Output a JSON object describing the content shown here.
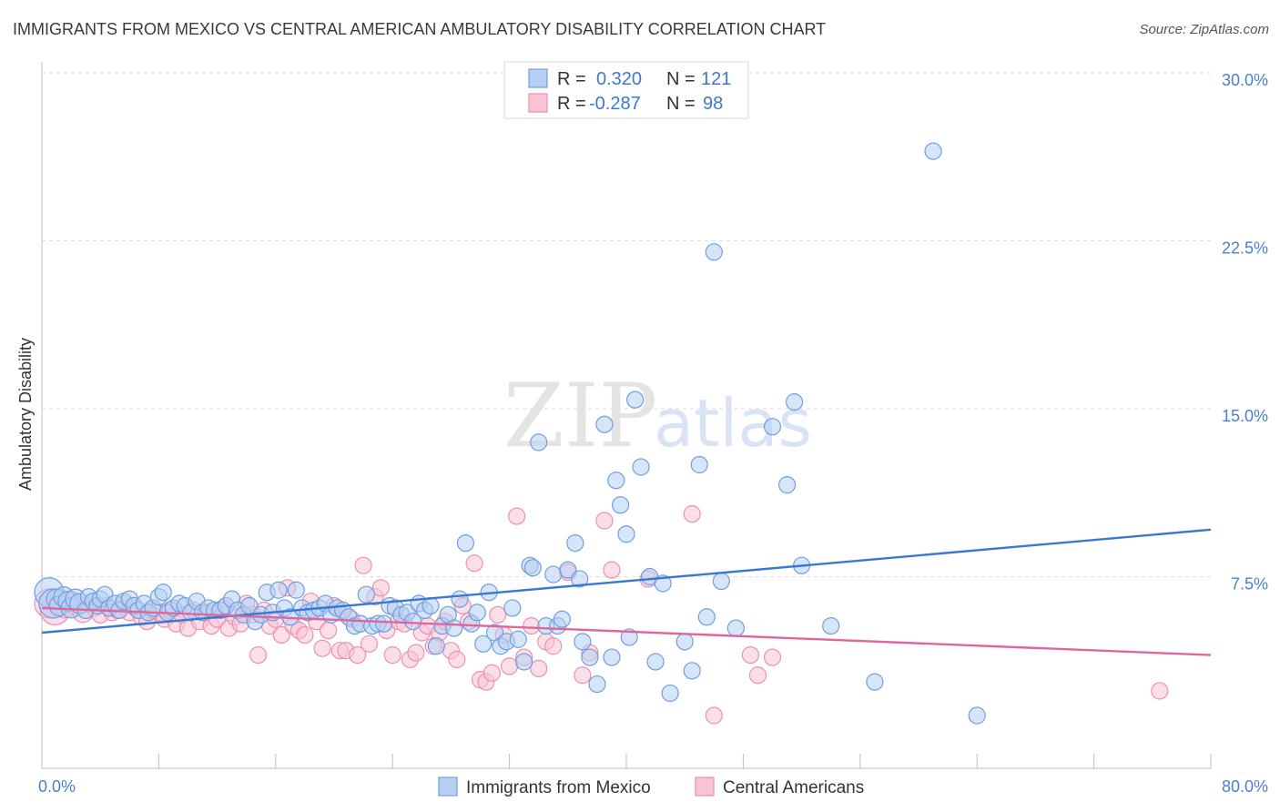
{
  "title": "IMMIGRANTS FROM MEXICO VS CENTRAL AMERICAN AMBULATORY DISABILITY CORRELATION CHART",
  "source": "Source: ZipAtlas.com",
  "watermark": {
    "zip": "ZIP",
    "atlas": "atlas"
  },
  "colors": {
    "blue": "#6f9fe0",
    "blue_fill": "#b7cff2",
    "blue_line": "#3a78d0",
    "pink": "#ee8fb0",
    "pink_fill": "#f7c4d5",
    "pink_line": "#e0669a",
    "grid": "#dddddd",
    "tick_text": "#4a7fd0"
  },
  "legend": {
    "rows": [
      {
        "r_label": "R =",
        "r_value": "0.320",
        "n_label": "N =",
        "n_value": "121"
      },
      {
        "r_label": "R =",
        "r_value": "-0.287",
        "n_label": "N =",
        "n_value": "98"
      }
    ]
  },
  "chart_data": {
    "type": "scatter",
    "title": "IMMIGRANTS FROM MEXICO VS CENTRAL AMERICAN AMBULATORY DISABILITY CORRELATION CHART",
    "xlabel": "",
    "ylabel": "Ambulatory Disability",
    "xlim": [
      0,
      80
    ],
    "ylim": [
      0,
      30
    ],
    "x_tick_labels": [
      "0.0%",
      "80.0%"
    ],
    "y_ticks": [
      7.5,
      15.0,
      22.5,
      30.0
    ],
    "y_tick_labels": [
      "7.5%",
      "15.0%",
      "22.5%",
      "30.0%"
    ],
    "grid": true,
    "legend_position": "bottom",
    "series": [
      {
        "name": "Immigrants from Mexico",
        "trend": {
          "x": [
            0,
            80
          ],
          "y": [
            5.0,
            9.6
          ]
        },
        "points": [
          [
            0.5,
            6.8
          ],
          [
            0.8,
            6.3
          ],
          [
            1.0,
            6.5
          ],
          [
            1.2,
            6.2
          ],
          [
            1.5,
            6.6
          ],
          [
            1.8,
            6.4
          ],
          [
            2.0,
            6.1
          ],
          [
            2.3,
            6.5
          ],
          [
            2.6,
            6.3
          ],
          [
            3.0,
            6.0
          ],
          [
            3.2,
            6.6
          ],
          [
            3.5,
            6.4
          ],
          [
            3.8,
            6.2
          ],
          [
            4.0,
            6.5
          ],
          [
            4.3,
            6.7
          ],
          [
            4.6,
            6.1
          ],
          [
            5.0,
            6.3
          ],
          [
            5.3,
            6.0
          ],
          [
            5.6,
            6.4
          ],
          [
            6.0,
            6.5
          ],
          [
            6.3,
            6.2
          ],
          [
            6.6,
            6.0
          ],
          [
            7.0,
            6.3
          ],
          [
            7.3,
            5.9
          ],
          [
            7.6,
            6.1
          ],
          [
            8.0,
            6.6
          ],
          [
            8.3,
            6.8
          ],
          [
            8.6,
            5.9
          ],
          [
            9.0,
            6.1
          ],
          [
            9.4,
            6.3
          ],
          [
            9.8,
            6.2
          ],
          [
            10.2,
            5.9
          ],
          [
            10.6,
            6.4
          ],
          [
            11.0,
            5.9
          ],
          [
            11.4,
            6.1
          ],
          [
            11.8,
            6.0
          ],
          [
            12.2,
            6.0
          ],
          [
            12.6,
            6.2
          ],
          [
            13.0,
            6.5
          ],
          [
            13.4,
            6.0
          ],
          [
            13.8,
            5.8
          ],
          [
            14.2,
            6.2
          ],
          [
            14.6,
            5.5
          ],
          [
            15.0,
            5.8
          ],
          [
            15.4,
            6.8
          ],
          [
            15.8,
            5.9
          ],
          [
            16.2,
            6.9
          ],
          [
            16.6,
            6.1
          ],
          [
            17.0,
            5.7
          ],
          [
            17.4,
            6.9
          ],
          [
            17.8,
            6.1
          ],
          [
            18.2,
            5.9
          ],
          [
            18.6,
            6.0
          ],
          [
            19.0,
            6.1
          ],
          [
            19.4,
            6.3
          ],
          [
            19.8,
            5.8
          ],
          [
            20.2,
            6.1
          ],
          [
            20.6,
            6.0
          ],
          [
            21.0,
            5.7
          ],
          [
            21.4,
            5.3
          ],
          [
            21.8,
            5.4
          ],
          [
            22.2,
            6.7
          ],
          [
            22.6,
            5.3
          ],
          [
            23.0,
            5.4
          ],
          [
            23.4,
            5.4
          ],
          [
            23.8,
            6.2
          ],
          [
            24.2,
            6.1
          ],
          [
            24.6,
            5.8
          ],
          [
            25.0,
            5.9
          ],
          [
            25.4,
            5.5
          ],
          [
            25.8,
            6.3
          ],
          [
            26.2,
            6.0
          ],
          [
            26.6,
            6.2
          ],
          [
            27.0,
            4.4
          ],
          [
            27.4,
            5.3
          ],
          [
            27.8,
            5.8
          ],
          [
            28.2,
            5.2
          ],
          [
            28.6,
            6.5
          ],
          [
            29.0,
            9.0
          ],
          [
            29.4,
            5.4
          ],
          [
            29.8,
            5.9
          ],
          [
            30.2,
            4.5
          ],
          [
            30.6,
            6.8
          ],
          [
            31.0,
            5.0
          ],
          [
            31.4,
            4.4
          ],
          [
            31.8,
            4.6
          ],
          [
            32.2,
            6.1
          ],
          [
            32.6,
            4.7
          ],
          [
            33.0,
            3.7
          ],
          [
            33.4,
            8.0
          ],
          [
            33.6,
            7.9
          ],
          [
            34.0,
            13.5
          ],
          [
            34.5,
            5.3
          ],
          [
            35.0,
            7.6
          ],
          [
            35.3,
            5.3
          ],
          [
            35.6,
            5.6
          ],
          [
            36.0,
            7.8
          ],
          [
            36.5,
            9.0
          ],
          [
            36.8,
            7.4
          ],
          [
            37.0,
            4.6
          ],
          [
            37.5,
            3.9
          ],
          [
            38.0,
            2.7
          ],
          [
            38.5,
            14.3
          ],
          [
            39.0,
            3.9
          ],
          [
            39.3,
            11.8
          ],
          [
            39.6,
            10.7
          ],
          [
            40.0,
            9.4
          ],
          [
            40.2,
            4.8
          ],
          [
            40.6,
            15.4
          ],
          [
            41.0,
            12.4
          ],
          [
            41.6,
            7.5
          ],
          [
            42.0,
            3.7
          ],
          [
            42.5,
            7.2
          ],
          [
            43.0,
            2.3
          ],
          [
            44.0,
            4.6
          ],
          [
            44.5,
            3.3
          ],
          [
            45.0,
            12.5
          ],
          [
            45.5,
            5.7
          ],
          [
            46.0,
            22.0
          ],
          [
            46.5,
            7.3
          ],
          [
            47.5,
            5.2
          ],
          [
            50.0,
            14.2
          ],
          [
            51.0,
            11.6
          ],
          [
            51.5,
            15.3
          ],
          [
            52.0,
            8.0
          ],
          [
            54.0,
            5.3
          ],
          [
            57.0,
            2.8
          ],
          [
            61.0,
            26.5
          ],
          [
            64.0,
            1.3
          ]
        ]
      },
      {
        "name": "Central Americans",
        "trend": {
          "x": [
            0,
            80
          ],
          "y": [
            6.1,
            4.0
          ]
        },
        "points": [
          [
            0.5,
            6.3
          ],
          [
            0.9,
            6.0
          ],
          [
            1.2,
            6.5
          ],
          [
            1.6,
            6.1
          ],
          [
            2.0,
            6.4
          ],
          [
            2.4,
            6.2
          ],
          [
            2.8,
            5.9
          ],
          [
            3.2,
            6.3
          ],
          [
            3.6,
            6.1
          ],
          [
            4.0,
            5.8
          ],
          [
            4.4,
            6.2
          ],
          [
            4.8,
            5.9
          ],
          [
            5.2,
            6.0
          ],
          [
            5.6,
            6.3
          ],
          [
            6.0,
            5.9
          ],
          [
            6.4,
            6.1
          ],
          [
            6.8,
            5.7
          ],
          [
            7.2,
            5.5
          ],
          [
            7.6,
            6.0
          ],
          [
            8.0,
            5.9
          ],
          [
            8.4,
            5.6
          ],
          [
            8.8,
            6.0
          ],
          [
            9.2,
            5.4
          ],
          [
            9.6,
            5.8
          ],
          [
            10.0,
            5.2
          ],
          [
            10.4,
            6.0
          ],
          [
            10.8,
            5.5
          ],
          [
            11.2,
            5.9
          ],
          [
            11.6,
            5.3
          ],
          [
            12.0,
            5.6
          ],
          [
            12.4,
            6.1
          ],
          [
            12.8,
            5.2
          ],
          [
            13.2,
            5.7
          ],
          [
            13.6,
            5.4
          ],
          [
            14.0,
            6.3
          ],
          [
            14.4,
            5.8
          ],
          [
            14.8,
            4.0
          ],
          [
            15.2,
            6.0
          ],
          [
            15.6,
            5.3
          ],
          [
            16.0,
            5.6
          ],
          [
            16.4,
            4.9
          ],
          [
            16.8,
            7.0
          ],
          [
            17.2,
            5.3
          ],
          [
            17.6,
            5.1
          ],
          [
            18.0,
            4.9
          ],
          [
            18.4,
            6.4
          ],
          [
            18.8,
            5.5
          ],
          [
            19.2,
            4.3
          ],
          [
            19.6,
            5.1
          ],
          [
            20.0,
            6.2
          ],
          [
            20.4,
            4.2
          ],
          [
            20.8,
            4.2
          ],
          [
            21.2,
            5.6
          ],
          [
            21.6,
            4.0
          ],
          [
            22.0,
            8.0
          ],
          [
            22.4,
            4.5
          ],
          [
            22.8,
            6.6
          ],
          [
            23.2,
            7.0
          ],
          [
            23.6,
            5.1
          ],
          [
            24.0,
            4.0
          ],
          [
            24.4,
            5.5
          ],
          [
            24.8,
            5.4
          ],
          [
            25.2,
            3.8
          ],
          [
            25.6,
            4.1
          ],
          [
            26.0,
            5.0
          ],
          [
            26.4,
            5.3
          ],
          [
            26.8,
            4.4
          ],
          [
            27.2,
            5.0
          ],
          [
            27.6,
            5.5
          ],
          [
            28.0,
            4.2
          ],
          [
            28.4,
            3.8
          ],
          [
            28.8,
            6.2
          ],
          [
            29.2,
            5.5
          ],
          [
            29.6,
            8.1
          ],
          [
            30.0,
            2.9
          ],
          [
            30.4,
            2.8
          ],
          [
            30.8,
            3.2
          ],
          [
            31.2,
            5.8
          ],
          [
            31.6,
            4.9
          ],
          [
            32.0,
            3.5
          ],
          [
            32.5,
            10.2
          ],
          [
            33.0,
            3.9
          ],
          [
            33.5,
            5.3
          ],
          [
            34.0,
            3.4
          ],
          [
            34.5,
            4.6
          ],
          [
            35.0,
            4.4
          ],
          [
            36.0,
            7.7
          ],
          [
            37.0,
            3.1
          ],
          [
            37.5,
            4.1
          ],
          [
            38.5,
            10.0
          ],
          [
            39.0,
            7.8
          ],
          [
            41.5,
            7.4
          ],
          [
            44.5,
            10.3
          ],
          [
            46.0,
            1.3
          ],
          [
            48.5,
            4.0
          ],
          [
            49.0,
            3.1
          ],
          [
            50.0,
            3.9
          ],
          [
            76.5,
            2.4
          ]
        ]
      }
    ]
  },
  "bottom_legend": [
    "Immigrants from Mexico",
    "Central Americans"
  ]
}
